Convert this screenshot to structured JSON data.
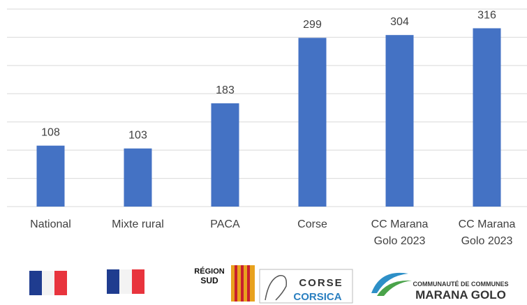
{
  "chart_data": {
    "type": "bar",
    "categories": [
      "National",
      "Mixte rural",
      "PACA",
      "Corse",
      "CC Marana Golo 2023",
      "CC Marana Golo 2023"
    ],
    "values": [
      108,
      103,
      183,
      299,
      304,
      316
    ],
    "color": "#4472c4",
    "ylim": [
      0,
      350
    ],
    "yticks": [
      0,
      50,
      100,
      150,
      200,
      250,
      300,
      350
    ],
    "grid": true
  },
  "logos": {
    "region": [
      "RÉGION",
      "SUD"
    ],
    "corse": [
      "CORSE",
      "CORSICA"
    ],
    "marana": [
      "COMMUNAUTÉ DE COMMUNES",
      "MARANA GOLO"
    ]
  }
}
